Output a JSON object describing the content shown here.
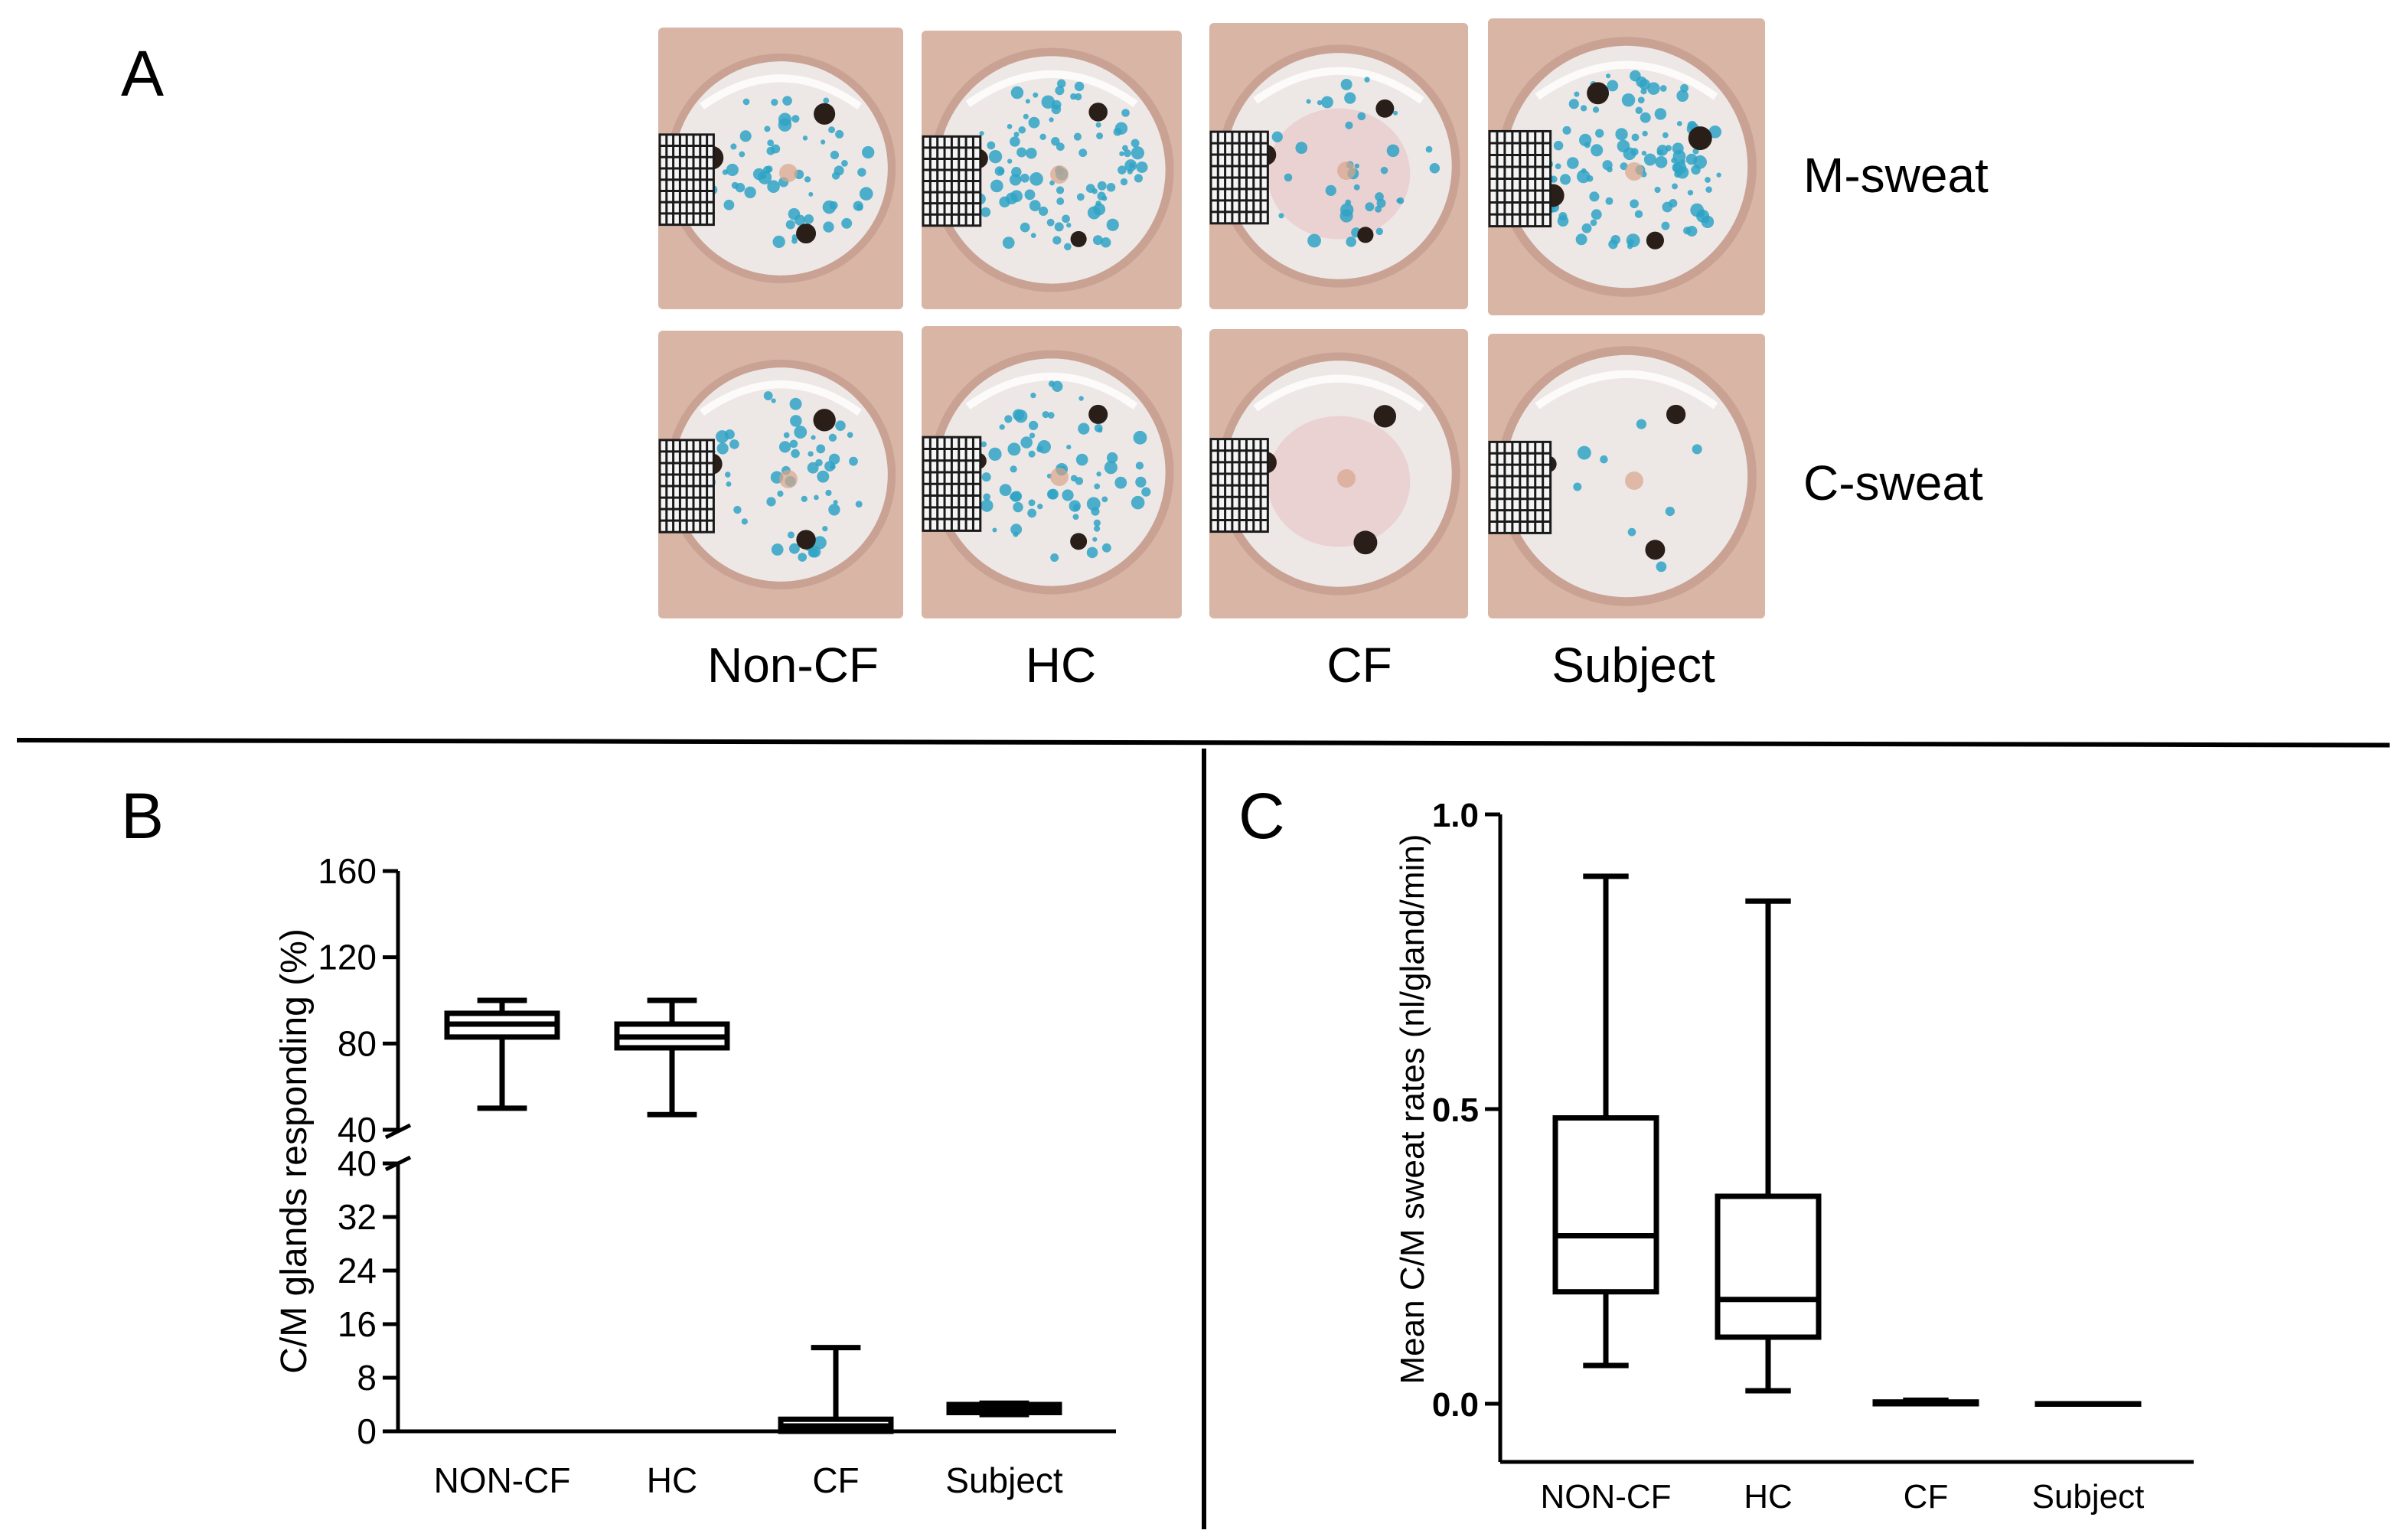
{
  "panel_a": {
    "letter": "A",
    "row_labels": [
      "M-sweat",
      "C-sweat"
    ],
    "col_labels": [
      "Non-CF",
      "HC",
      "CF",
      "Subject"
    ],
    "colors": {
      "dish_rim": "#d9b5a6",
      "dish_inner": "#ede8e6",
      "blue_dye": "#2fa3c6",
      "hair": "#2a1e18",
      "grid": "#1a1a1a"
    }
  },
  "chart_data": [
    {
      "type": "box",
      "panel": "B",
      "letter": "B",
      "ylabel": "C/M glands responding (%)",
      "categories": [
        "NON-CF",
        "HC",
        "CF",
        "Subject"
      ],
      "y_axis_break": true,
      "upper_segment": {
        "ylim": [
          40,
          160
        ],
        "ticks": [
          40,
          80,
          120,
          160
        ]
      },
      "lower_segment": {
        "ylim": [
          0,
          40
        ],
        "ticks": [
          0,
          8,
          16,
          24,
          32,
          40
        ]
      },
      "boxes": [
        {
          "category": "NON-CF",
          "min": 50,
          "q1": 83,
          "median": 89,
          "q3": 94,
          "max": 100
        },
        {
          "category": "HC",
          "min": 47,
          "q1": 78,
          "median": 83,
          "q3": 89,
          "max": 100
        },
        {
          "category": "CF",
          "min": 0,
          "q1": 0,
          "median": 0.8,
          "q3": 1.8,
          "max": 12.5
        },
        {
          "category": "Subject",
          "min": 2.5,
          "q1": 2.8,
          "median": 3.3,
          "q3": 4,
          "max": 4.2
        }
      ]
    },
    {
      "type": "box",
      "panel": "C",
      "letter": "C",
      "ylabel": "Mean C/M sweat rates (nl/gland/min)",
      "categories": [
        "NON-CF",
        "HC",
        "CF",
        "Subject"
      ],
      "ylim": [
        0,
        1.0
      ],
      "ticks": [
        0.0,
        0.5,
        1.0
      ],
      "tick_labels": [
        "0.0",
        "0.5",
        "1.0"
      ],
      "boxes": [
        {
          "category": "NON-CF",
          "min": 0.065,
          "q1": 0.19,
          "median": 0.285,
          "q3": 0.485,
          "max": 0.895
        },
        {
          "category": "HC",
          "min": 0.022,
          "q1": 0.113,
          "median": 0.177,
          "q3": 0.352,
          "max": 0.853
        },
        {
          "category": "CF",
          "min": 0,
          "q1": 0,
          "median": 0,
          "q3": 0.003,
          "max": 0.006
        },
        {
          "category": "Subject",
          "min": 0,
          "q1": 0,
          "median": 0,
          "q3": 0,
          "max": 0
        }
      ]
    }
  ]
}
